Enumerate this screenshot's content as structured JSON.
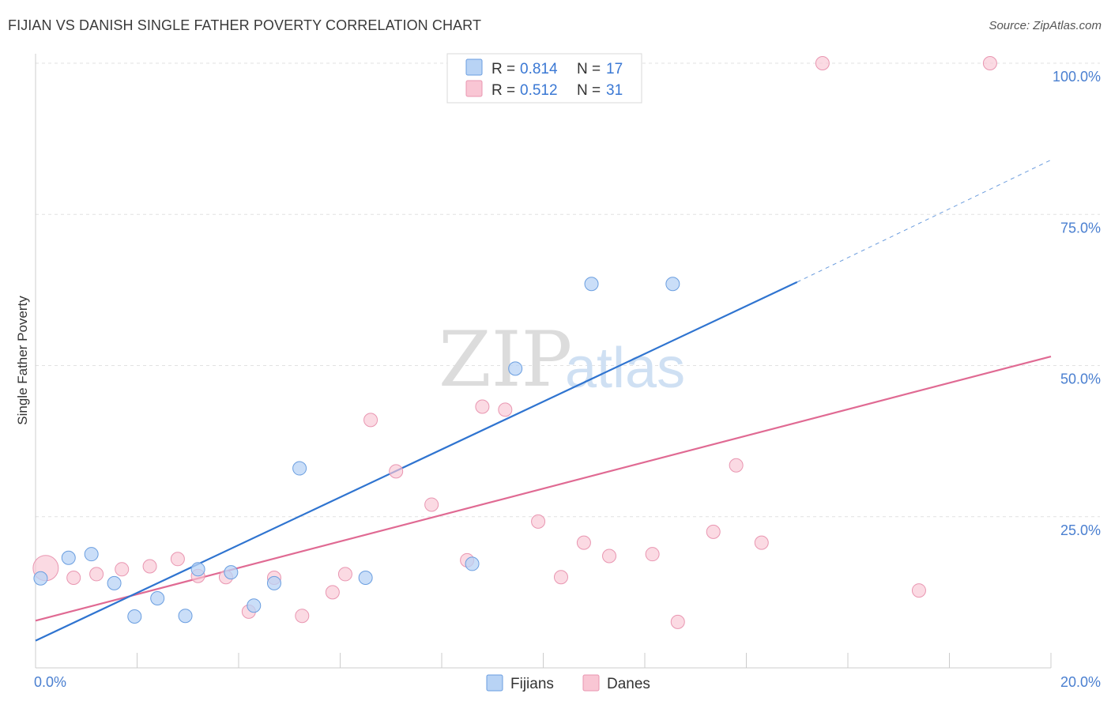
{
  "title": "FIJIAN VS DANISH SINGLE FATHER POVERTY CORRELATION CHART",
  "source": "Source: ZipAtlas.com",
  "watermark": {
    "zip": "ZIP",
    "atlas": "atlas"
  },
  "colors": {
    "fijians_fill": "#b8d3f5",
    "fijians_stroke": "#6a9ee0",
    "fijians_line": "#2f74d0",
    "danes_fill": "#f9c6d4",
    "danes_stroke": "#e996b1",
    "danes_line": "#e06a93",
    "grid": "#e2e2e2",
    "axis_text": "#4a7fd0"
  },
  "legend": {
    "rows": [
      {
        "r_label": "R =",
        "r_value": "0.814",
        "n_label": "N =",
        "n_value": "17"
      },
      {
        "r_label": "R =",
        "r_value": "0.512",
        "n_label": "N =",
        "n_value": "31"
      }
    ]
  },
  "chart_data": {
    "type": "scatter",
    "title": "FIJIAN VS DANISH SINGLE FATHER POVERTY CORRELATION CHART",
    "xlabel": "",
    "ylabel": "Single Father Poverty",
    "xlim": [
      0,
      20
    ],
    "ylim": [
      0,
      100
    ],
    "x_tick_labels": [
      "0.0%",
      "20.0%"
    ],
    "y_ticks": [
      {
        "value": 25,
        "label": "25.0%"
      },
      {
        "value": 50,
        "label": "50.0%"
      },
      {
        "value": 75,
        "label": "75.0%"
      },
      {
        "value": 100,
        "label": "100.0%"
      }
    ],
    "legend_position": "bottom",
    "series": [
      {
        "name": "Fijians",
        "points": [
          [
            0.1,
            14.8
          ],
          [
            0.65,
            18.2
          ],
          [
            1.1,
            18.8
          ],
          [
            1.55,
            14.0
          ],
          [
            1.95,
            8.5
          ],
          [
            2.4,
            11.5
          ],
          [
            2.95,
            8.6
          ],
          [
            3.2,
            16.3
          ],
          [
            3.85,
            15.8
          ],
          [
            4.3,
            10.3
          ],
          [
            4.7,
            14.0
          ],
          [
            5.2,
            33.0
          ],
          [
            6.5,
            14.9
          ],
          [
            8.6,
            17.2
          ],
          [
            9.45,
            49.5
          ],
          [
            10.95,
            63.5
          ],
          [
            12.55,
            63.5
          ]
        ],
        "trend": {
          "x0": 0.0,
          "y0": 4.5,
          "x1": 15.0,
          "y1": 63.8,
          "dash_to_x": 20.0,
          "dash_to_y": 84.0
        }
      },
      {
        "name": "Danes",
        "points": [
          [
            0.2,
            16.5
          ],
          [
            0.75,
            14.9
          ],
          [
            1.2,
            15.5
          ],
          [
            1.7,
            16.3
          ],
          [
            2.25,
            16.8
          ],
          [
            2.8,
            18.0
          ],
          [
            3.2,
            15.2
          ],
          [
            3.75,
            15.0
          ],
          [
            4.2,
            9.3
          ],
          [
            4.7,
            14.9
          ],
          [
            5.25,
            8.6
          ],
          [
            5.85,
            12.5
          ],
          [
            6.1,
            15.5
          ],
          [
            6.6,
            41.0
          ],
          [
            7.1,
            32.5
          ],
          [
            7.8,
            27.0
          ],
          [
            8.5,
            17.8
          ],
          [
            8.8,
            43.2
          ],
          [
            9.25,
            42.7
          ],
          [
            9.9,
            24.2
          ],
          [
            10.35,
            15.0
          ],
          [
            10.8,
            20.7
          ],
          [
            11.3,
            18.5
          ],
          [
            12.15,
            18.8
          ],
          [
            12.65,
            7.6
          ],
          [
            13.35,
            22.5
          ],
          [
            13.8,
            33.5
          ],
          [
            14.3,
            20.7
          ],
          [
            15.5,
            100.0
          ],
          [
            17.4,
            12.8
          ],
          [
            18.8,
            100.0
          ]
        ],
        "trend": {
          "x0": 0.0,
          "y0": 7.8,
          "x1": 20.0,
          "y1": 51.5
        }
      }
    ]
  },
  "bottom_legend": [
    "Fijians",
    "Danes"
  ]
}
